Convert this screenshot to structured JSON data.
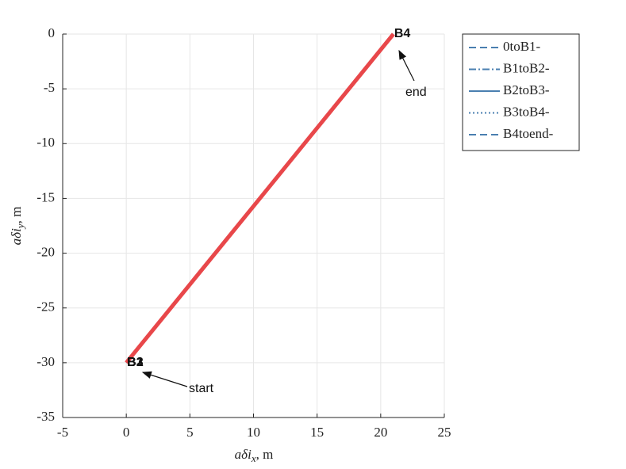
{
  "chart_data": {
    "type": "line",
    "xlabel": {
      "base": "aδi",
      "sub": "x",
      "unit": ", m"
    },
    "ylabel": {
      "base": "aδi",
      "sub": "y",
      "unit": ", m"
    },
    "xlim": [
      -5,
      25
    ],
    "ylim": [
      -35,
      0
    ],
    "xticks": [
      -5,
      0,
      5,
      10,
      15,
      20,
      25
    ],
    "yticks": [
      0,
      -5,
      -10,
      -15,
      -20,
      -25,
      -30,
      -35
    ],
    "grid": true,
    "legend": "outside-right",
    "series": [
      {
        "name": "0toB1-",
        "color": "#4a7fb0",
        "linestyle": "--",
        "x": [
          0,
          0
        ],
        "y": [
          -30,
          -30
        ]
      },
      {
        "name": "B1toB2-",
        "color": "#4a7fb0",
        "linestyle": "-.",
        "x": [
          0,
          0
        ],
        "y": [
          -30,
          -30
        ]
      },
      {
        "name": "B2toB3-",
        "color": "#4a7fb0",
        "linestyle": "-",
        "x": [
          0,
          0
        ],
        "y": [
          -30,
          -30
        ]
      },
      {
        "name": "B3toB4-",
        "color": "#4a7fb0",
        "linestyle": ":",
        "x": [
          0,
          21
        ],
        "y": [
          -30,
          0
        ]
      },
      {
        "name": "B4toend-",
        "color": "#4a7fb0",
        "linestyle": "--",
        "x": [
          21,
          21
        ],
        "y": [
          0,
          0
        ]
      }
    ],
    "trajectory": {
      "color": "#e8474a",
      "x": [
        0,
        21
      ],
      "y": [
        -30,
        0
      ]
    },
    "points": [
      {
        "label": "B1",
        "x": 0,
        "y": -30
      },
      {
        "label": "B2",
        "x": 0,
        "y": -30
      },
      {
        "label": "B3",
        "x": 0,
        "y": -30
      },
      {
        "label": "B4",
        "x": 21,
        "y": 0
      }
    ],
    "annotations": [
      "start",
      "end"
    ]
  }
}
